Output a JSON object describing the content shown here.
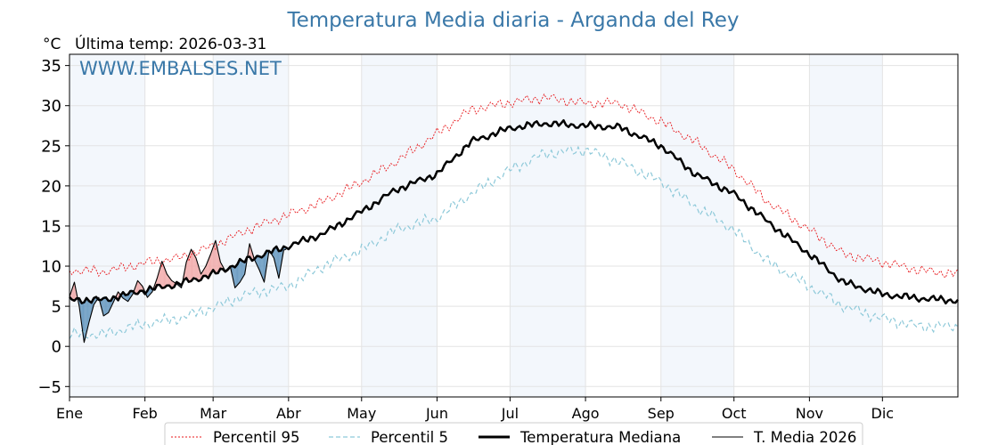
{
  "title": "Temperatura Media diaria - Arganda del Rey",
  "unit_label": "°C",
  "last_temp_label": "Última temp: 2026-03-31",
  "watermark": "WWW.EMBALSES.NET",
  "colors": {
    "title": "#3a78a8",
    "p95": "#e8171b",
    "p5": "#8ec9d9",
    "median": "#000000",
    "current": "#000000",
    "above_fill": "#f1a7a7",
    "below_fill": "#5f93bd",
    "month_band": "#f3f7fc"
  },
  "chart_data": {
    "type": "line",
    "title": "Temperatura Media diaria - Arganda del Rey",
    "ylabel": "°C",
    "ylim": [
      -6.3,
      36.4
    ],
    "yticks": [
      -5,
      0,
      5,
      10,
      15,
      20,
      25,
      30,
      35
    ],
    "xlim": [
      1,
      366
    ],
    "months": [
      "Ene",
      "Feb",
      "Mar",
      "Abr",
      "May",
      "Jun",
      "Jul",
      "Ago",
      "Sep",
      "Oct",
      "Nov",
      "Dic"
    ],
    "month_start_days": [
      1,
      32,
      60,
      91,
      121,
      152,
      182,
      213,
      244,
      274,
      305,
      335
    ],
    "grid": true,
    "legend_position": "bottom",
    "annual_curves": {
      "day": [
        1,
        15,
        32,
        46,
        60,
        74,
        91,
        105,
        121,
        135,
        152,
        166,
        182,
        196,
        213,
        227,
        244,
        258,
        274,
        288,
        305,
        319,
        335,
        350,
        366
      ],
      "p95": [
        9.5,
        9.3,
        10.4,
        11.0,
        12.5,
        14.5,
        16.4,
        18.0,
        20.5,
        23.0,
        26.5,
        29.5,
        30.4,
        31.0,
        30.3,
        30.3,
        28.0,
        25.5,
        22.0,
        18.0,
        14.5,
        11.5,
        10.5,
        9.5,
        9.0
      ],
      "p5": [
        1.5,
        1.5,
        2.8,
        3.5,
        4.8,
        6.5,
        7.5,
        10.0,
        12.0,
        14.5,
        16.0,
        19.0,
        22.0,
        24.0,
        24.5,
        23.0,
        20.5,
        17.5,
        14.5,
        10.5,
        7.5,
        5.0,
        3.5,
        2.5,
        2.5
      ],
      "median": [
        5.8,
        5.8,
        7.0,
        7.8,
        9.0,
        10.8,
        12.5,
        14.0,
        16.8,
        19.5,
        21.5,
        25.5,
        27.2,
        27.8,
        27.5,
        27.3,
        25.0,
        21.5,
        19.0,
        15.5,
        11.5,
        8.0,
        6.5,
        6.0,
        5.7
      ]
    },
    "series": [
      {
        "name": "Percentil 95",
        "style": "dotted",
        "color": "#e8171b"
      },
      {
        "name": "Percentil 5",
        "style": "dashed",
        "color": "#8ec9d9"
      },
      {
        "name": "Temperatura Mediana",
        "style": "solid-thick",
        "color": "#000000"
      },
      {
        "name": "T. Media 2026",
        "style": "solid-thin",
        "color": "#000000",
        "x": [
          1,
          3,
          5,
          7,
          9,
          11,
          13,
          15,
          17,
          19,
          21,
          23,
          25,
          27,
          29,
          31,
          33,
          35,
          37,
          39,
          41,
          43,
          45,
          47,
          49,
          51,
          53,
          55,
          57,
          59,
          61,
          63,
          65,
          67,
          69,
          71,
          73,
          75,
          77,
          79,
          81,
          83,
          85,
          87,
          89,
          90
        ],
        "values": [
          6.2,
          8.0,
          5.0,
          0.5,
          3.0,
          5.2,
          6.1,
          3.8,
          4.2,
          5.5,
          6.8,
          6.0,
          5.6,
          6.5,
          8.2,
          7.5,
          6.1,
          6.8,
          8.5,
          10.6,
          9.0,
          8.2,
          7.8,
          7.3,
          10.5,
          12.1,
          11.0,
          9.0,
          10.0,
          11.5,
          13.2,
          10.5,
          9.4,
          10.0,
          7.3,
          8.0,
          9.0,
          12.8,
          10.8,
          9.5,
          8.0,
          12.0,
          11.0,
          8.5,
          12.0,
          12.1
        ]
      }
    ]
  },
  "legend": {
    "p95": "Percentil 95",
    "p5": "Percentil 5",
    "median": "Temperatura Mediana",
    "current": "T. Media 2026"
  }
}
